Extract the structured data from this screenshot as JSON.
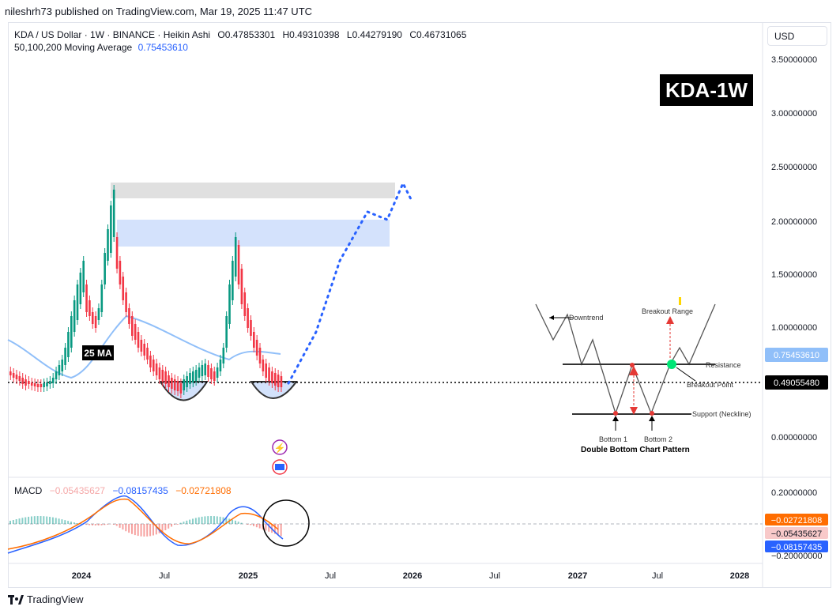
{
  "header": {
    "published": "nileshrh73 published on TradingView.com, Mar 19, 2025 11:47 UTC"
  },
  "legend": {
    "symbol": "KDA / US Dollar · 1W · BINANCE · Heikin Ashi",
    "open": "O0.47853301",
    "high": "H0.49310398",
    "low": "L0.44279190",
    "close": "C0.46731065",
    "ma_label": "50,100,200 Moving Average",
    "ma_value": "0.75453610"
  },
  "macd": {
    "label": "MACD",
    "histogram": "−0.05435627",
    "macd_line": "−0.08157435",
    "signal": "−0.02721808"
  },
  "currency": "USD",
  "badge": "KDA-1W",
  "ma_annotation": "25 MA",
  "footer": {
    "brand": "TradingView"
  },
  "colors": {
    "up": "#089981",
    "down": "#f23645",
    "ma": "#90bff9",
    "macd": "#2962ff",
    "signal": "#ff6d00",
    "hist_pos": "#26a69a",
    "hist_neg": "#ef5350",
    "projection": "#2962ff"
  },
  "chart_data": {
    "type": "candlestick",
    "y_ticks": [
      "3.50000000",
      "3.00000000",
      "2.50000000",
      "2.00000000",
      "1.50000000",
      "1.00000000",
      "0.00000000"
    ],
    "x_ticks": [
      "2024",
      "Jul",
      "2025",
      "Jul",
      "2026",
      "Jul",
      "2027",
      "Jul",
      "2028"
    ],
    "price_labels": {
      "ma": "0.75453610",
      "current": "0.49055480"
    },
    "zones": [
      {
        "name": "upper target zone",
        "from": 2.2,
        "to": 2.33,
        "color": "#d8d8d8"
      },
      {
        "name": "lower target zone",
        "from": 1.75,
        "to": 1.98,
        "color": "#c9dbfb"
      }
    ],
    "macd_axis_labels": {
      "top": "0.20000000",
      "signal": "−0.02721808",
      "histogram": "−0.05435627",
      "macd": "−0.08157435",
      "bottom": "−0.20000000"
    },
    "pattern_inset": {
      "title": "Double Bottom Chart Pattern",
      "labels": [
        "Downtrend",
        "Breakout Range",
        "Resistance",
        "Breakout Point",
        "Support (Neckline)",
        "Bottom 1",
        "Bottom 2"
      ]
    }
  }
}
